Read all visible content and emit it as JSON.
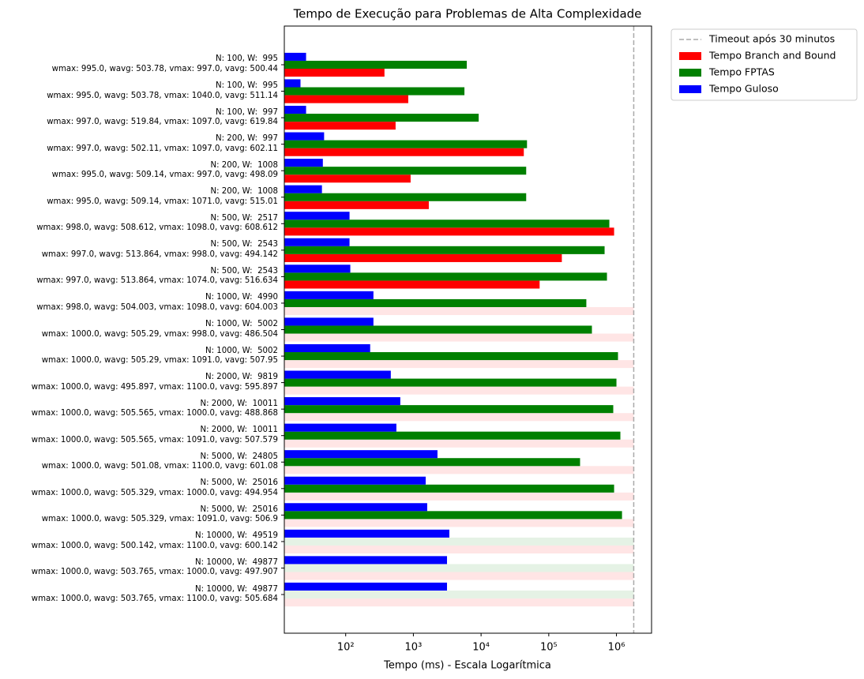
{
  "chart_data": {
    "type": "barh",
    "title": "Tempo de Execução para Problemas de Alta Complexidade",
    "xlabel": "Tempo (ms) - Escala Logarítmica",
    "log_x": true,
    "xlim": [
      12.4,
      3300000
    ],
    "xticks": [
      {
        "value": 100,
        "label": "10²"
      },
      {
        "value": 1000,
        "label": "10³"
      },
      {
        "value": 10000,
        "label": "10⁴"
      },
      {
        "value": 100000,
        "label": "10⁵"
      },
      {
        "value": 1000000,
        "label": "10⁶"
      }
    ],
    "legend": "outside upper right",
    "timeout": {
      "label": "Timeout após 30 minutos",
      "value": 1800000,
      "color": "#aaaaaa"
    },
    "categories": [
      "N: 100, W:  995\nwmax: 995.0, wavg: 503.78, vmax: 997.0, vavg: 500.44",
      "N: 100, W:  995\nwmax: 995.0, wavg: 503.78, vmax: 1040.0, vavg: 511.14",
      "N: 100, W:  997\nwmax: 997.0, wavg: 519.84, vmax: 1097.0, vavg: 619.84",
      "N: 200, W:  997\nwmax: 997.0, wavg: 502.11, vmax: 1097.0, vavg: 602.11",
      "N: 200, W:  1008\nwmax: 995.0, wavg: 509.14, vmax: 997.0, vavg: 498.09",
      "N: 200, W:  1008\nwmax: 995.0, wavg: 509.14, vmax: 1071.0, vavg: 515.01",
      "N: 500, W:  2517\nwmax: 998.0, wavg: 508.612, vmax: 1098.0, vavg: 608.612",
      "N: 500, W:  2543\nwmax: 997.0, wavg: 513.864, vmax: 998.0, vavg: 494.142",
      "N: 500, W:  2543\nwmax: 997.0, wavg: 513.864, vmax: 1074.0, vavg: 516.634",
      "N: 1000, W:  4990\nwmax: 998.0, wavg: 504.003, vmax: 1098.0, vavg: 604.003",
      "N: 1000, W:  5002\nwmax: 1000.0, wavg: 505.29, vmax: 998.0, vavg: 486.504",
      "N: 1000, W:  5002\nwmax: 1000.0, wavg: 505.29, vmax: 1091.0, vavg: 507.95",
      "N: 2000, W:  9819\nwmax: 1000.0, wavg: 495.897, vmax: 1100.0, vavg: 595.897",
      "N: 2000, W:  10011\nwmax: 1000.0, wavg: 505.565, vmax: 1000.0, vavg: 488.868",
      "N: 2000, W:  10011\nwmax: 1000.0, wavg: 505.565, vmax: 1091.0, vavg: 507.579",
      "N: 5000, W:  24805\nwmax: 1000.0, wavg: 501.08, vmax: 1100.0, vavg: 601.08",
      "N: 5000, W:  25016\nwmax: 1000.0, wavg: 505.329, vmax: 1000.0, vavg: 494.954",
      "N: 5000, W:  25016\nwmax: 1000.0, wavg: 505.329, vmax: 1091.0, vavg: 506.9",
      "N: 10000, W:  49519\nwmax: 1000.0, wavg: 500.142, vmax: 1100.0, vavg: 600.142",
      "N: 10000, W:  49877\nwmax: 1000.0, wavg: 503.765, vmax: 1000.0, vavg: 497.907",
      "N: 10000, W:  49877\nwmax: 1000.0, wavg: 503.765, vmax: 1100.0, vavg: 505.684"
    ],
    "series": [
      {
        "name": "Tempo Branch and Bound",
        "color": "#ff0000",
        "values": [
          374,
          840,
          546,
          42800,
          910,
          1690,
          923000,
          156000,
          73300,
          null,
          null,
          null,
          null,
          null,
          null,
          null,
          null,
          null,
          null,
          null,
          null
        ]
      },
      {
        "name": "Tempo FPTAS",
        "color": "#008000",
        "values": [
          6150,
          5680,
          9220,
          47700,
          46400,
          46400,
          785000,
          668000,
          724000,
          359000,
          434000,
          1054000,
          1000000,
          897000,
          1143000,
          290000,
          923000,
          1208000,
          null,
          null,
          null
        ]
      },
      {
        "name": "Tempo Guloso",
        "color": "#0000ff",
        "values": [
          26,
          21.5,
          26,
          48,
          46,
          44.6,
          114,
          114,
          117,
          257,
          257,
          230,
          464,
          641,
          561,
          2270,
          1520,
          1600,
          3400,
          3140,
          3140
        ]
      }
    ]
  }
}
